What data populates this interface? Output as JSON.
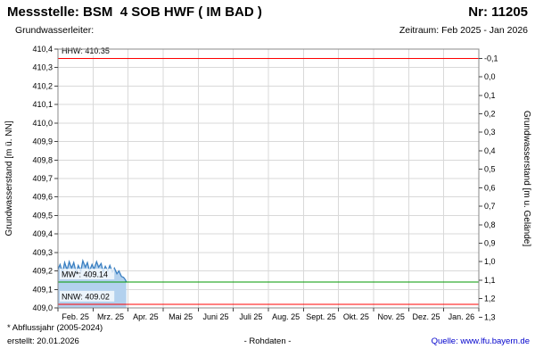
{
  "header": {
    "title": "Messstelle: BSM  4 SOB HWF ( IM BAD )",
    "station_number": "Nr: 11205",
    "aquifer_label": "Grundwasserleiter:",
    "period": "Zeitraum: Feb 2025 - Jan 2026"
  },
  "footer": {
    "footnote": "* Abflussjahr (2005-2024)",
    "created": "erstellt: 20.01.2026",
    "data_type": "- Rohdaten -",
    "source_label": "Quelle:",
    "source_link": "www.lfu.bayern.de"
  },
  "chart_data": {
    "type": "line",
    "title": "",
    "x_axis": {
      "months": [
        "Feb. 25",
        "Mrz. 25",
        "Apr. 25",
        "Mai 25",
        "Juni 25",
        "Juli 25",
        "Aug. 25",
        "Sept. 25",
        "Okt. 25",
        "Nov. 25",
        "Dez. 25",
        "Jan. 26"
      ]
    },
    "y_left": {
      "label": "Grundwasserstand [m ü. NN]",
      "min": 409.0,
      "max": 410.4,
      "step": 0.1,
      "ticks": [
        {
          "value": 410.4,
          "label": "410,4"
        },
        {
          "value": 410.3,
          "label": "410,3"
        },
        {
          "value": 410.2,
          "label": "410,2"
        },
        {
          "value": 410.1,
          "label": "410,1"
        },
        {
          "value": 410.0,
          "label": "410,0"
        },
        {
          "value": 409.9,
          "label": "409,9"
        },
        {
          "value": 409.8,
          "label": "409,8"
        },
        {
          "value": 409.7,
          "label": "409,7"
        },
        {
          "value": 409.6,
          "label": "409,6"
        },
        {
          "value": 409.5,
          "label": "409,5"
        },
        {
          "value": 409.4,
          "label": "409,4"
        },
        {
          "value": 409.3,
          "label": "409,3"
        },
        {
          "value": 409.2,
          "label": "409,2"
        },
        {
          "value": 409.1,
          "label": "409,1"
        },
        {
          "value": 409.0,
          "label": "409,0"
        }
      ]
    },
    "y_right": {
      "label": "Grundwasserstand [m u. Gelände]",
      "ground_elevation": 410.25,
      "min": -0.1,
      "max": 1.3,
      "step": 0.1,
      "ticks": [
        {
          "value": -0.1,
          "label": "-0,1"
        },
        {
          "value": 0.0,
          "label": "0,0"
        },
        {
          "value": 0.1,
          "label": "0,1"
        },
        {
          "value": 0.2,
          "label": "0,2"
        },
        {
          "value": 0.3,
          "label": "0,3"
        },
        {
          "value": 0.4,
          "label": "0,4"
        },
        {
          "value": 0.5,
          "label": "0,5"
        },
        {
          "value": 0.6,
          "label": "0,6"
        },
        {
          "value": 0.7,
          "label": "0,7"
        },
        {
          "value": 0.8,
          "label": "0,8"
        },
        {
          "value": 0.9,
          "label": "0,9"
        },
        {
          "value": 1.0,
          "label": "1,0"
        },
        {
          "value": 1.1,
          "label": "1,1"
        },
        {
          "value": 1.2,
          "label": "1,2"
        },
        {
          "value": 1.3,
          "label": "1,3"
        }
      ]
    },
    "reference_lines": [
      {
        "id": "hhw",
        "label": "HHW: 410.35",
        "value": 410.35,
        "color": "#ff0000"
      },
      {
        "id": "mw",
        "label": "MW*: 409.14",
        "value": 409.14,
        "color": "#009900"
      },
      {
        "id": "nnw",
        "label": "NNW: 409.02",
        "value": 409.02,
        "color": "#ff0000"
      }
    ],
    "series": [
      {
        "name": "Grundwasserstand Rohdaten",
        "color": "#3a7fc1",
        "fill": "#b3d1ee",
        "points": [
          [
            0.0,
            409.21
          ],
          [
            0.06,
            409.235
          ],
          [
            0.13,
            409.19
          ],
          [
            0.19,
            409.245
          ],
          [
            0.26,
            409.205
          ],
          [
            0.32,
            409.25
          ],
          [
            0.39,
            409.215
          ],
          [
            0.45,
            409.245
          ],
          [
            0.52,
            409.19
          ],
          [
            0.58,
            409.23
          ],
          [
            0.65,
            409.2
          ],
          [
            0.71,
            409.255
          ],
          [
            0.78,
            409.22
          ],
          [
            0.84,
            409.245
          ],
          [
            0.9,
            409.2
          ],
          [
            0.97,
            409.235
          ],
          [
            1.03,
            409.21
          ],
          [
            1.1,
            409.25
          ],
          [
            1.16,
            409.22
          ],
          [
            1.23,
            409.24
          ],
          [
            1.29,
            409.195
          ],
          [
            1.35,
            409.225
          ],
          [
            1.42,
            409.2
          ],
          [
            1.48,
            409.23
          ],
          [
            1.55,
            409.195
          ],
          [
            1.61,
            409.215
          ],
          [
            1.68,
            409.185
          ],
          [
            1.74,
            409.2
          ],
          [
            1.81,
            409.17
          ],
          [
            1.87,
            409.165
          ],
          [
            1.93,
            409.15
          ],
          [
            1.95,
            409.14
          ]
        ]
      }
    ],
    "colors": {
      "plot_bg": "#ffffff",
      "grid": "#d9d9d9",
      "border": "#888888",
      "axis_text": "#000000"
    }
  }
}
